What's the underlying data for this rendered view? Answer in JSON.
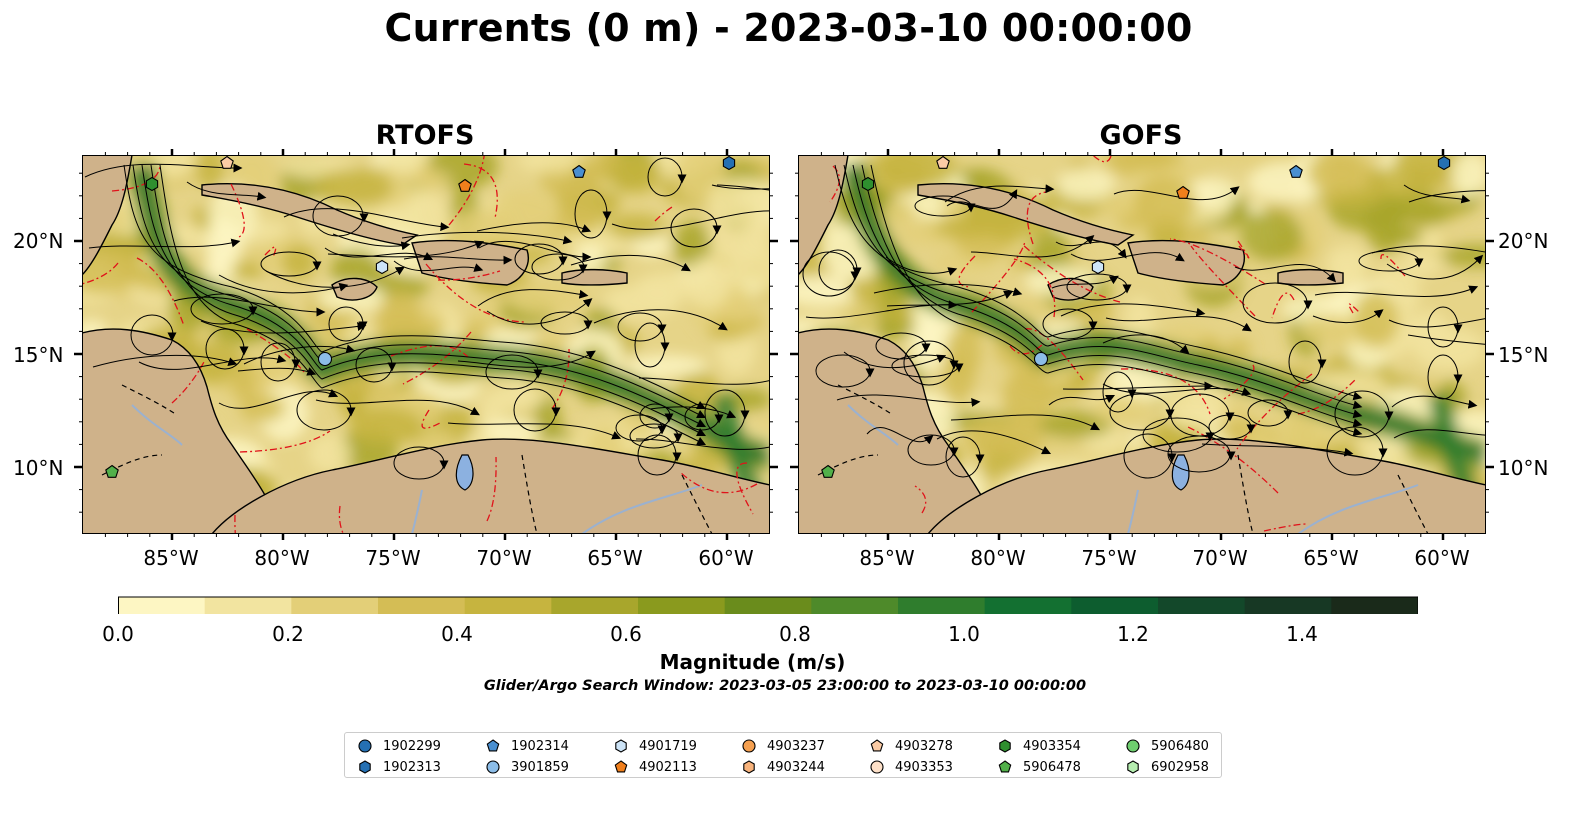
{
  "title": "Currents (0 m) - 2023-03-10 00:00:00",
  "panels": [
    {
      "title": "RTOFS"
    },
    {
      "title": "GOFS"
    }
  ],
  "axes": {
    "xticks": [
      "85°W",
      "80°W",
      "75°W",
      "70°W",
      "65°W",
      "60°W"
    ],
    "yticks": [
      "20°N",
      "15°N",
      "10°N"
    ]
  },
  "colorbar": {
    "label": "Magnitude (m/s)",
    "ticks": [
      "0.0",
      "0.2",
      "0.4",
      "0.6",
      "0.8",
      "1.0",
      "1.2",
      "1.4"
    ],
    "colors": [
      "#fdf6c3",
      "#f2e4a0",
      "#e3cf78",
      "#d4bd55",
      "#c6b43f",
      "#a8a62c",
      "#8a9a1e",
      "#6a8c1c",
      "#4e8a2a",
      "#2f7d2d",
      "#137031",
      "#0d5d2f",
      "#13482a",
      "#173824",
      "#1a2a1a"
    ],
    "extend": "max"
  },
  "search_window": "Glider/Argo Search Window: 2023-03-05 23:00:00 to 2023-03-10 00:00:00",
  "legend": {
    "items": [
      {
        "label": "1902299",
        "marker": "circle",
        "color": "#2570b3"
      },
      {
        "label": "1902313",
        "marker": "hexagon",
        "color": "#2570b3"
      },
      {
        "label": "1902314",
        "marker": "pentagon",
        "color": "#4a8fd0"
      },
      {
        "label": "3901859",
        "marker": "circle",
        "color": "#8cbde8"
      },
      {
        "label": "4901719",
        "marker": "hexagon",
        "color": "#cde4f7"
      },
      {
        "label": "4902113",
        "marker": "pentagon",
        "color": "#f07f1c"
      },
      {
        "label": "4903237",
        "marker": "circle",
        "color": "#f5a050"
      },
      {
        "label": "4903244",
        "marker": "hexagon",
        "color": "#f8b37c"
      },
      {
        "label": "4903278",
        "marker": "pentagon",
        "color": "#fbcba5"
      },
      {
        "label": "4903353",
        "marker": "circle",
        "color": "#fde0c8"
      },
      {
        "label": "4903354",
        "marker": "hexagon",
        "color": "#2f8f2f"
      },
      {
        "label": "5906478",
        "marker": "pentagon",
        "color": "#52b04a"
      },
      {
        "label": "5906480",
        "marker": "circle",
        "color": "#6fcf6f"
      },
      {
        "label": "6902958",
        "marker": "hexagon",
        "color": "#b6eeb0"
      }
    ]
  }
}
